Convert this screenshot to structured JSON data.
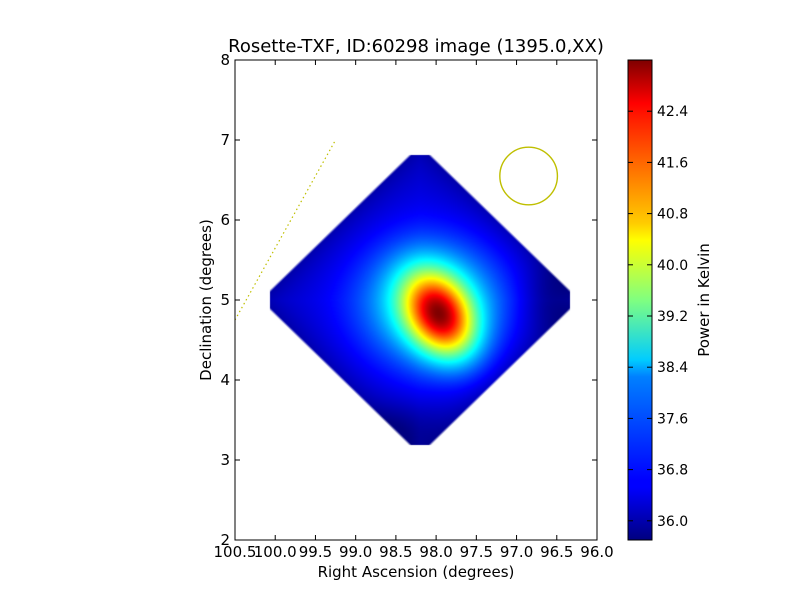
{
  "chart_data": {
    "type": "heatmap",
    "title": "Rosette-TXF, ID:60298 image (1395.0,XX)",
    "xlabel": "Right Ascension (degrees)",
    "ylabel": "Declination (degrees)",
    "xlim": [
      100.5,
      96.0
    ],
    "ylim": [
      2,
      8
    ],
    "x_ticks": [
      "100.5",
      "100.0",
      "99.5",
      "99.0",
      "98.5",
      "98.0",
      "97.5",
      "97.0",
      "96.5",
      "96.0"
    ],
    "x_tick_values": [
      100.5,
      100.0,
      99.5,
      99.0,
      98.5,
      98.0,
      97.5,
      97.0,
      96.5,
      96.0
    ],
    "y_ticks": [
      "2",
      "3",
      "4",
      "5",
      "6",
      "7",
      "8"
    ],
    "y_tick_values": [
      2,
      3,
      4,
      5,
      6,
      7,
      8
    ],
    "colorbar": {
      "label": "Power in Kelvin",
      "range": [
        35.7,
        43.2
      ],
      "ticks": [
        "36.0",
        "36.8",
        "37.6",
        "38.4",
        "39.2",
        "40.0",
        "40.8",
        "41.6",
        "42.4"
      ],
      "tick_values": [
        36.0,
        36.8,
        37.6,
        38.4,
        39.2,
        40.0,
        40.8,
        41.6,
        42.4
      ],
      "colormap": "jet"
    },
    "map": {
      "shape": "diamond",
      "center": [
        98.2,
        5.0
      ],
      "ra_half_extent": 2.0,
      "dec_half_extent": 1.95,
      "background_value": 36.3,
      "peak": {
        "ra": 97.95,
        "dec": 4.8,
        "value": 43.0
      }
    },
    "beam_circle": {
      "ra": 96.85,
      "dec": 6.55,
      "radius_deg": 0.36,
      "color": "#bfbf00"
    },
    "dotted_line": {
      "points": [
        [
          100.5,
          4.75
        ],
        [
          99.25,
          7.0
        ]
      ],
      "color": "#bfbf00"
    }
  }
}
